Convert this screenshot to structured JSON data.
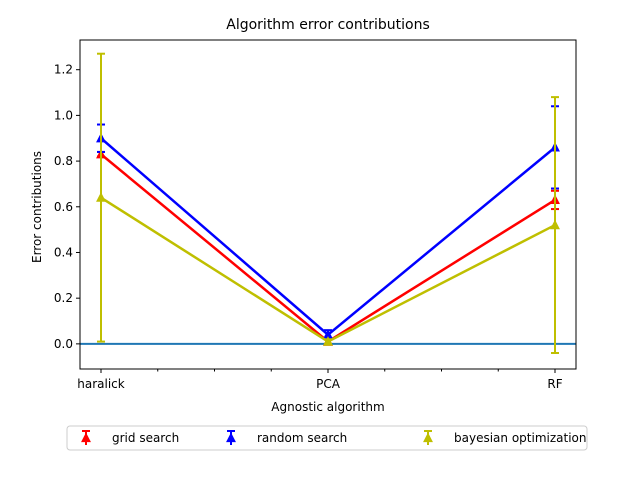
{
  "chart_data": {
    "type": "line",
    "title": "Algorithm error contributions",
    "xlabel": "Agnostic algorithm",
    "ylabel": "Error contributions",
    "categories": [
      "haralick",
      "PCA",
      "RF"
    ],
    "ylim": [
      -0.11,
      1.33
    ],
    "yticks": [
      0.0,
      0.2,
      0.4,
      0.6,
      0.8,
      1.0,
      1.2
    ],
    "ytick_labels": [
      "0.0",
      "0.2",
      "0.4",
      "0.6",
      "0.8",
      "1.0",
      "1.2"
    ],
    "reference_line": {
      "y": 0.0,
      "color": "#1f77b4"
    },
    "grid": false,
    "legend_position": "below",
    "series": [
      {
        "name": "grid search",
        "color": "#ff0000",
        "values": [
          0.83,
          0.01,
          0.63
        ],
        "errors": [
          0.01,
          0.01,
          0.04
        ]
      },
      {
        "name": "random search",
        "color": "#0000ff",
        "values": [
          0.9,
          0.04,
          0.86
        ],
        "errors": [
          0.06,
          0.02,
          0.18
        ]
      },
      {
        "name": "bayesian optimization",
        "color": "#bfbf00",
        "values": [
          0.64,
          0.01,
          0.52
        ],
        "errors": [
          0.63,
          0.01,
          0.56
        ]
      }
    ]
  }
}
